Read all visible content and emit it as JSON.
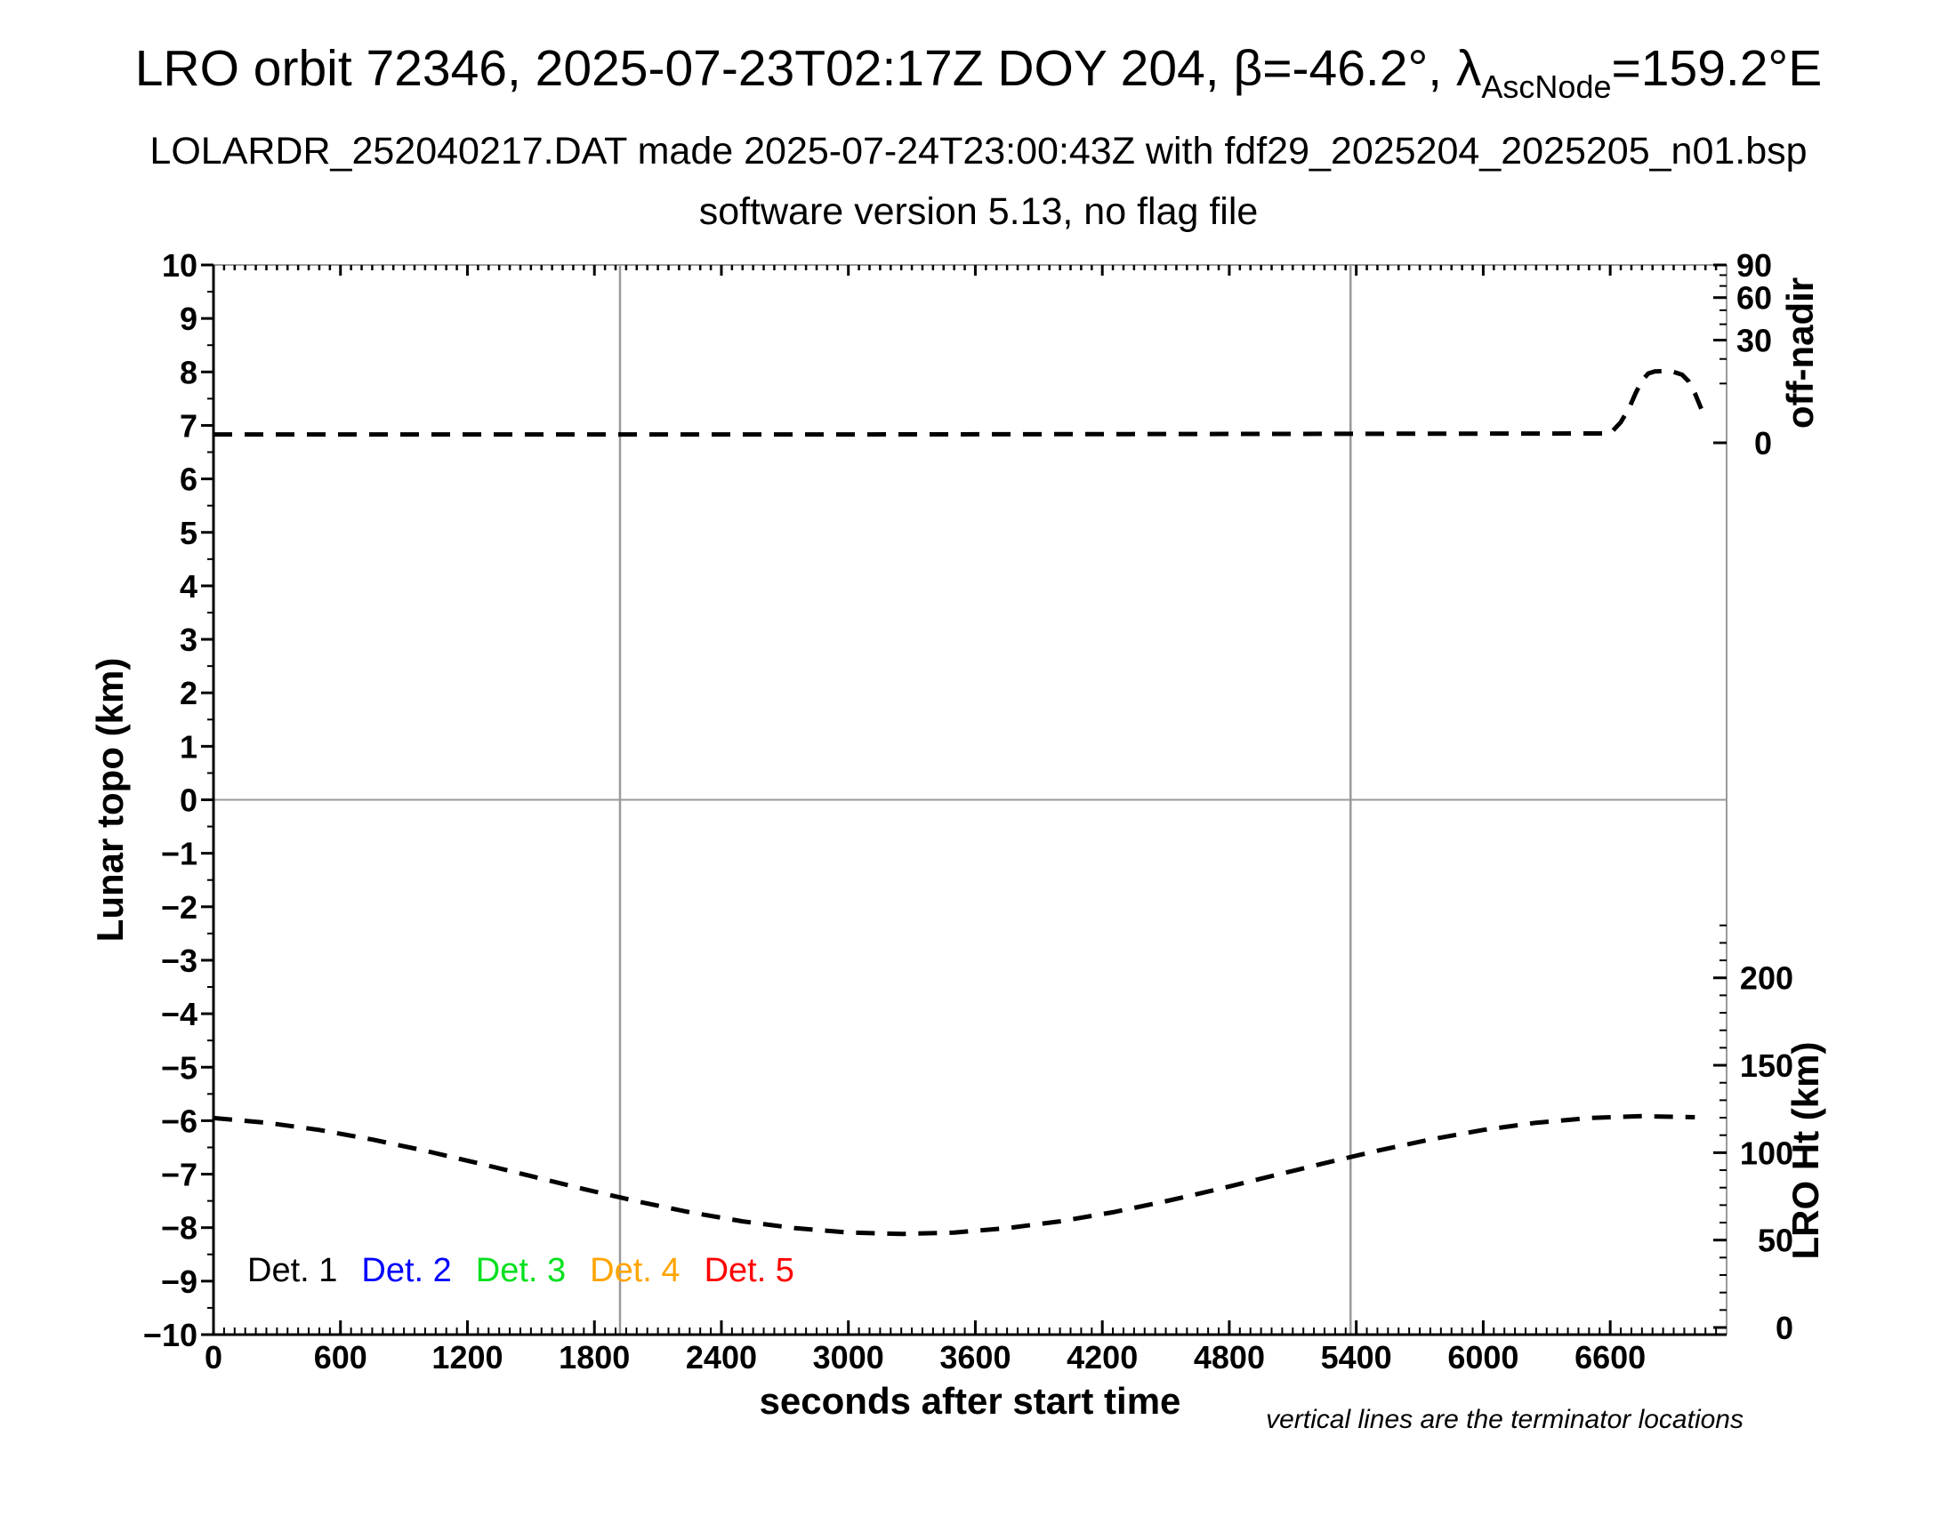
{
  "header": {
    "title_main": "LRO orbit 72346, 2025-07-23T02:17Z DOY 204, β=-46.2°, λ",
    "title_subscript": "AscNode",
    "title_suffix": "=159.2°E",
    "subtitle": "LOLARDR_252040217.DAT made 2025-07-24T23:00:43Z with fdf29_2025204_2025205_n01.bsp",
    "subtitle2": "software version 5.13, no flag file"
  },
  "chart_data": {
    "type": "line",
    "title": "LRO orbit 72346, 2025-07-23T02:17Z DOY 204, β=-46.2°, λAscNode=159.2°E",
    "subtitle": "LOLARDR_252040217.DAT made 2025-07-24T23:00:43Z with fdf29_2025204_2025205_n01.bsp",
    "subtitle2": "software version 5.13, no flag file",
    "x_axis": {
      "label": "seconds after start time",
      "min": 0,
      "max": 7150,
      "major_tick_values": [
        0,
        600,
        1200,
        1800,
        2400,
        3000,
        3600,
        4200,
        4800,
        5400,
        6000,
        6600
      ],
      "major_tick_labels": [
        "0",
        "600",
        "1200",
        "1800",
        "2400",
        "3000",
        "3600",
        "4200",
        "4800",
        "5400",
        "6000",
        "6600"
      ],
      "minor_tick_step": 50
    },
    "y_axis_left": {
      "label": "Lunar topo (km)",
      "min": -10,
      "max": 10,
      "major_tick_values": [
        10,
        9,
        8,
        7,
        6,
        5,
        4,
        3,
        2,
        1,
        0,
        -1,
        -2,
        -3,
        -4,
        -5,
        -6,
        -7,
        -8,
        -9,
        -10
      ],
      "major_tick_labels": [
        "10",
        "9",
        "8",
        "7",
        "6",
        "5",
        "4",
        "3",
        "2",
        "1",
        "0",
        "−1",
        "−2",
        "−3",
        "−4",
        "−5",
        "−6",
        "−7",
        "−8",
        "−9",
        "−10"
      ],
      "minor_tick_step": 0.5
    },
    "y_axis_right_top": {
      "label": "off-nadir",
      "major_tick_values": [
        90,
        60,
        30,
        0
      ],
      "major_tick_labels": [
        "90",
        "60",
        "30",
        "0"
      ],
      "minor_tick_values": [
        10,
        20,
        40,
        50,
        70,
        80
      ],
      "scale": "sqrt(angle/90), compressed into top 16.6% of plot height"
    },
    "y_axis_right_bottom": {
      "label": "LRO Ht (km)",
      "major_tick_values": [
        200,
        150,
        100,
        50,
        0
      ],
      "major_tick_labels": [
        "200",
        "150",
        "100",
        "50",
        "0"
      ],
      "minor_tick_step": 10,
      "minor_tick_max": 230,
      "scale": "linear, 0 km near plot bottom, ~98 px per 50 km"
    },
    "gridlines": {
      "horizontal_at_topo_km": 0,
      "vertical_terminators_at_s": [
        1921,
        5373
      ],
      "color": "#9a9a9a"
    },
    "series": [
      {
        "name": "spacecraft off-nadir angle",
        "axis": "right_top",
        "line_style": "dashed",
        "color": "#000000",
        "points": [
          [
            0,
            0.2
          ],
          [
            3000,
            0.2
          ],
          [
            6600,
            0.25
          ],
          [
            6650,
            1.2
          ],
          [
            6690,
            3.5
          ],
          [
            6720,
            7.0
          ],
          [
            6750,
            11.0
          ],
          [
            6780,
            13.7
          ],
          [
            6810,
            14.5
          ],
          [
            6860,
            14.6
          ],
          [
            6900,
            14.3
          ],
          [
            6940,
            13.2
          ],
          [
            6970,
            10.8
          ],
          [
            7000,
            7.0
          ],
          [
            7030,
            3.3
          ]
        ],
        "units": "degrees"
      },
      {
        "name": "LRO height above surface",
        "axis": "right_bottom",
        "line_style": "dashed",
        "color": "#000000",
        "points": [
          [
            0,
            119.8
          ],
          [
            250,
            117.1
          ],
          [
            500,
            113.0
          ],
          [
            750,
            107.5
          ],
          [
            1000,
            101.1
          ],
          [
            1250,
            94.0
          ],
          [
            1500,
            86.6
          ],
          [
            1750,
            79.2
          ],
          [
            2000,
            72.2
          ],
          [
            2250,
            65.9
          ],
          [
            2500,
            60.7
          ],
          [
            2750,
            56.8
          ],
          [
            3000,
            54.3
          ],
          [
            3250,
            53.5
          ],
          [
            3500,
            54.3
          ],
          [
            3750,
            56.8
          ],
          [
            4000,
            60.7
          ],
          [
            4250,
            65.9
          ],
          [
            4500,
            72.2
          ],
          [
            4750,
            79.2
          ],
          [
            5000,
            86.6
          ],
          [
            5250,
            94.0
          ],
          [
            5500,
            101.1
          ],
          [
            5750,
            107.5
          ],
          [
            6000,
            113.0
          ],
          [
            6250,
            117.1
          ],
          [
            6500,
            119.8
          ],
          [
            6750,
            120.9
          ],
          [
            7000,
            120.3
          ]
        ],
        "units": "km"
      }
    ],
    "legend": [
      {
        "label": "Det. 1",
        "color": "#000000"
      },
      {
        "label": "Det. 2",
        "color": "#0000ff"
      },
      {
        "label": "Det. 3",
        "color": "#00e01e"
      },
      {
        "label": "Det. 4",
        "color": "#ffa400"
      },
      {
        "label": "Det. 5",
        "color": "#ff0000"
      }
    ],
    "legend_position": "bottom-left inside plot",
    "note": "vertical lines are the terminator locations"
  }
}
